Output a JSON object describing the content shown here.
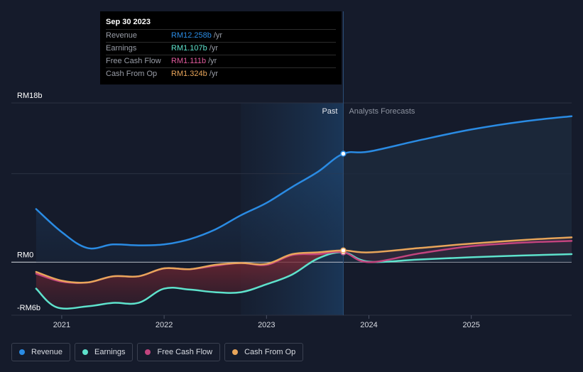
{
  "chart_data": {
    "type": "area",
    "x_unit": "year",
    "x_range": [
      2020.73,
      2025.98
    ],
    "y_range": [
      -6,
      18
    ],
    "y_labels": [
      {
        "value": 18,
        "text": "RM18b"
      },
      {
        "value": 0,
        "text": "RM0"
      },
      {
        "value": -6,
        "text": "-RM6b"
      }
    ],
    "x_ticks": [
      {
        "value": 2021,
        "text": "2021"
      },
      {
        "value": 2022,
        "text": "2022"
      },
      {
        "value": 2023,
        "text": "2023"
      },
      {
        "value": 2024,
        "text": "2024"
      },
      {
        "value": 2025,
        "text": "2025"
      }
    ],
    "divider_x": 2023.75,
    "past_region_start": 2022.75,
    "past_label": "Past",
    "forecast_label": "Analysts Forecasts",
    "series": [
      {
        "name": "Revenue",
        "color": "#2a8be3",
        "key": "revenue",
        "points": [
          [
            2020.75,
            6.0
          ],
          [
            2021.0,
            3.4
          ],
          [
            2021.25,
            1.6
          ],
          [
            2021.5,
            2.0
          ],
          [
            2021.75,
            1.9
          ],
          [
            2022.0,
            2.0
          ],
          [
            2022.25,
            2.6
          ],
          [
            2022.5,
            3.7
          ],
          [
            2022.75,
            5.3
          ],
          [
            2023.0,
            6.7
          ],
          [
            2023.25,
            8.5
          ],
          [
            2023.5,
            10.2
          ],
          [
            2023.75,
            12.258
          ],
          [
            2024.0,
            12.5
          ],
          [
            2024.5,
            13.8
          ],
          [
            2025.0,
            15.0
          ],
          [
            2025.5,
            15.9
          ],
          [
            2025.98,
            16.5
          ]
        ]
      },
      {
        "name": "Earnings",
        "color": "#5ee2cc",
        "key": "earnings",
        "points": [
          [
            2020.75,
            -3.0
          ],
          [
            2020.95,
            -5.1
          ],
          [
            2021.25,
            -5.0
          ],
          [
            2021.5,
            -4.6
          ],
          [
            2021.75,
            -4.6
          ],
          [
            2022.0,
            -3.0
          ],
          [
            2022.25,
            -3.1
          ],
          [
            2022.5,
            -3.4
          ],
          [
            2022.75,
            -3.4
          ],
          [
            2023.0,
            -2.5
          ],
          [
            2023.25,
            -1.4
          ],
          [
            2023.5,
            0.4
          ],
          [
            2023.75,
            1.107
          ],
          [
            2024.0,
            0.05
          ],
          [
            2024.5,
            0.3
          ],
          [
            2025.0,
            0.55
          ],
          [
            2025.5,
            0.75
          ],
          [
            2025.98,
            0.9
          ]
        ]
      },
      {
        "name": "Free Cash Flow",
        "color": "#c2447e",
        "key": "fcf",
        "points": [
          [
            2020.75,
            -1.3
          ],
          [
            2021.0,
            -2.2
          ],
          [
            2021.25,
            -2.3
          ],
          [
            2021.5,
            -1.6
          ],
          [
            2021.75,
            -1.6
          ],
          [
            2022.0,
            -0.7
          ],
          [
            2022.25,
            -0.8
          ],
          [
            2022.5,
            -0.4
          ],
          [
            2022.75,
            -0.1
          ],
          [
            2023.0,
            -0.3
          ],
          [
            2023.25,
            0.8
          ],
          [
            2023.5,
            0.9
          ],
          [
            2023.75,
            1.111
          ],
          [
            2024.0,
            0.0
          ],
          [
            2024.5,
            1.0
          ],
          [
            2025.0,
            1.8
          ],
          [
            2025.5,
            2.2
          ],
          [
            2025.98,
            2.4
          ]
        ]
      },
      {
        "name": "Cash From Op",
        "color": "#e8a55a",
        "key": "cfo",
        "points": [
          [
            2020.75,
            -1.1
          ],
          [
            2021.0,
            -2.1
          ],
          [
            2021.25,
            -2.3
          ],
          [
            2021.5,
            -1.6
          ],
          [
            2021.75,
            -1.6
          ],
          [
            2022.0,
            -0.7
          ],
          [
            2022.25,
            -0.8
          ],
          [
            2022.5,
            -0.3
          ],
          [
            2022.75,
            -0.1
          ],
          [
            2023.0,
            -0.2
          ],
          [
            2023.25,
            0.9
          ],
          [
            2023.5,
            1.1
          ],
          [
            2023.75,
            1.324
          ],
          [
            2024.0,
            1.1
          ],
          [
            2024.5,
            1.6
          ],
          [
            2025.0,
            2.1
          ],
          [
            2025.5,
            2.5
          ],
          [
            2025.98,
            2.8
          ]
        ]
      }
    ]
  },
  "tooltip": {
    "date": "Sep 30 2023",
    "rows": [
      {
        "label": "Revenue",
        "value": "RM12.258b",
        "unit": "/yr",
        "color": "#2a8be3"
      },
      {
        "label": "Earnings",
        "value": "RM1.107b",
        "unit": "/yr",
        "color": "#5ee2cc"
      },
      {
        "label": "Free Cash Flow",
        "value": "RM1.111b",
        "unit": "/yr",
        "color": "#c2447e"
      },
      {
        "label": "Cash From Op",
        "value": "RM1.324b",
        "unit": "/yr",
        "color": "#e8a55a"
      }
    ]
  },
  "legend": [
    {
      "label": "Revenue",
      "color": "#2a8be3"
    },
    {
      "label": "Earnings",
      "color": "#5ee2cc"
    },
    {
      "label": "Free Cash Flow",
      "color": "#c2447e"
    },
    {
      "label": "Cash From Op",
      "color": "#e8a55a"
    }
  ]
}
